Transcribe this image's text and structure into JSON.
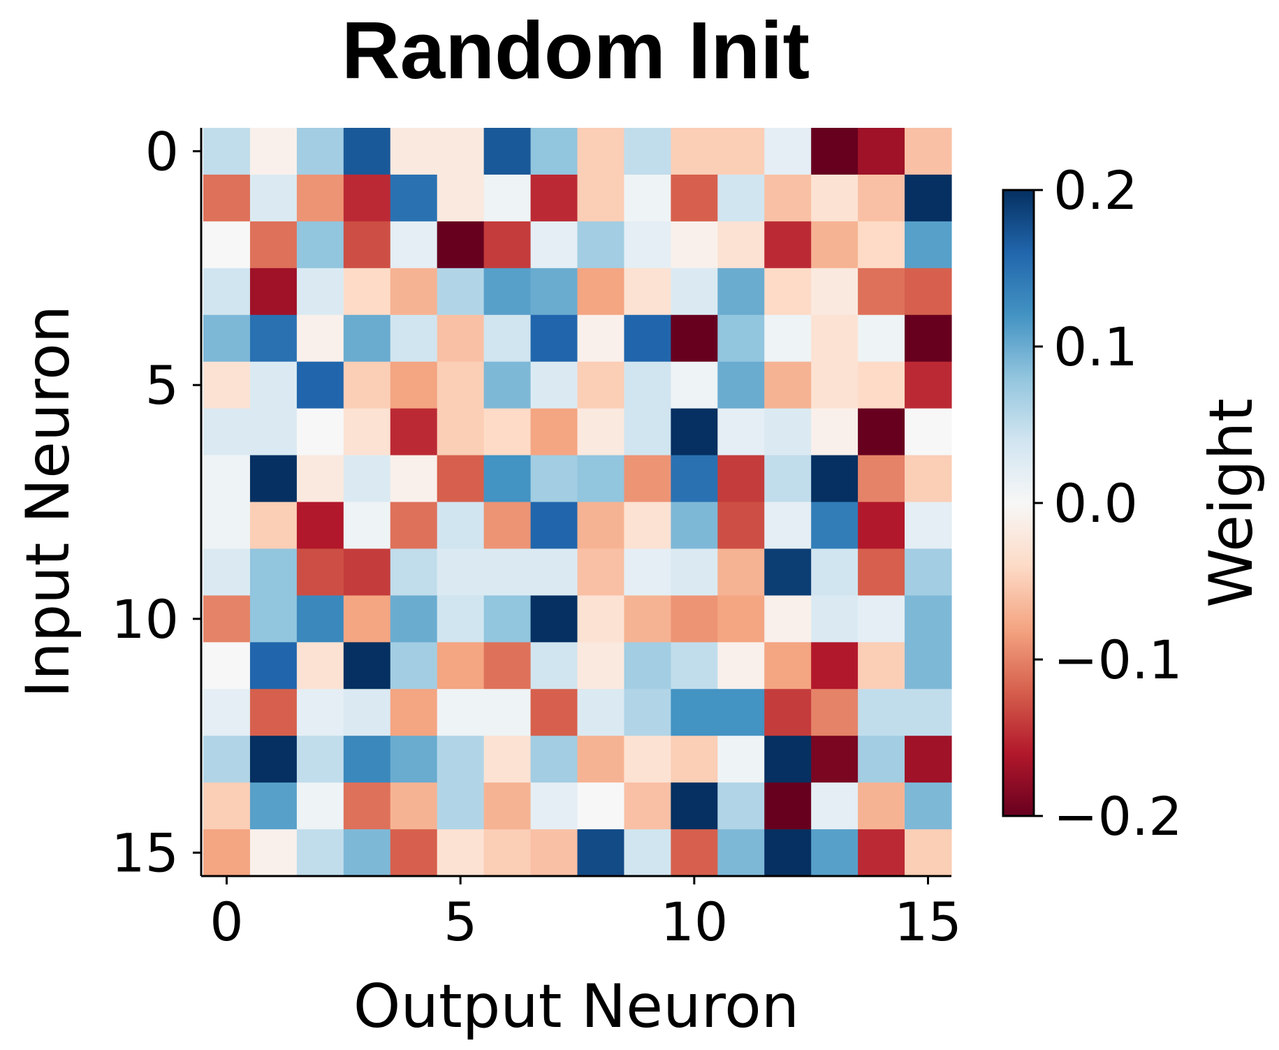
{
  "chart_data": {
    "type": "heatmap",
    "title": "Random Init",
    "xlabel": "Output Neuron",
    "ylabel": "Input Neuron",
    "x_ticks": [
      "0",
      "5",
      "10",
      "15"
    ],
    "y_ticks": [
      "0",
      "5",
      "10",
      "15"
    ],
    "rows": 16,
    "cols": 16,
    "colormap": "RdBu",
    "vmin": -0.2,
    "vmax": 0.2,
    "colorbar": {
      "label": "Weight",
      "ticks": [
        0.2,
        0.1,
        0.0,
        -0.1,
        -0.2
      ],
      "tick_labels": [
        "0.2",
        "0.1",
        "0.0",
        "−0.1",
        "−0.2"
      ]
    },
    "values": [
      [
        0.05,
        -0.01,
        0.07,
        0.17,
        -0.02,
        -0.02,
        0.17,
        0.08,
        -0.05,
        0.05,
        -0.05,
        -0.05,
        0.02,
        -0.2,
        -0.17,
        -0.06
      ],
      [
        -0.11,
        0.03,
        -0.09,
        -0.15,
        0.15,
        -0.02,
        0.01,
        -0.15,
        -0.05,
        0.01,
        -0.12,
        0.04,
        -0.06,
        -0.03,
        -0.06,
        0.2
      ],
      [
        0.0,
        -0.11,
        0.08,
        -0.13,
        0.02,
        -0.2,
        -0.14,
        0.02,
        0.07,
        0.02,
        -0.01,
        -0.03,
        -0.15,
        -0.07,
        -0.04,
        0.11
      ],
      [
        0.04,
        -0.17,
        0.03,
        -0.04,
        -0.07,
        0.06,
        0.11,
        0.1,
        -0.08,
        -0.03,
        0.03,
        0.1,
        -0.04,
        -0.02,
        -0.11,
        -0.12
      ],
      [
        0.09,
        0.15,
        -0.01,
        0.1,
        0.04,
        -0.06,
        0.04,
        0.16,
        -0.01,
        0.16,
        -0.2,
        0.08,
        0.01,
        -0.03,
        0.01,
        -0.2
      ],
      [
        -0.03,
        0.03,
        0.16,
        -0.05,
        -0.08,
        -0.05,
        0.09,
        0.03,
        -0.05,
        0.04,
        0.01,
        0.1,
        -0.07,
        -0.03,
        -0.04,
        -0.15
      ],
      [
        0.03,
        0.03,
        0.0,
        -0.03,
        -0.15,
        -0.05,
        -0.04,
        -0.08,
        -0.02,
        0.04,
        0.2,
        0.02,
        0.03,
        -0.01,
        -0.2,
        0.0
      ],
      [
        0.01,
        0.2,
        -0.02,
        0.03,
        -0.01,
        -0.12,
        0.12,
        0.07,
        0.08,
        -0.09,
        0.15,
        -0.14,
        0.05,
        0.2,
        -0.1,
        -0.05
      ],
      [
        0.01,
        -0.05,
        -0.16,
        0.01,
        -0.11,
        0.04,
        -0.09,
        0.16,
        -0.07,
        -0.03,
        0.09,
        -0.13,
        0.02,
        0.14,
        -0.16,
        0.02
      ],
      [
        0.03,
        0.08,
        -0.13,
        -0.14,
        0.05,
        0.03,
        0.03,
        0.03,
        -0.06,
        0.02,
        0.03,
        -0.07,
        0.19,
        0.04,
        -0.12,
        0.07
      ],
      [
        -0.1,
        0.08,
        0.13,
        -0.08,
        0.1,
        0.04,
        0.08,
        0.2,
        -0.03,
        -0.07,
        -0.09,
        -0.08,
        -0.01,
        0.03,
        0.02,
        0.09
      ],
      [
        0.0,
        0.16,
        -0.03,
        0.2,
        0.07,
        -0.08,
        -0.11,
        0.04,
        -0.02,
        0.07,
        0.05,
        -0.01,
        -0.08,
        -0.16,
        -0.05,
        0.09
      ],
      [
        0.02,
        -0.12,
        0.02,
        0.03,
        -0.08,
        0.01,
        0.01,
        -0.12,
        0.03,
        0.06,
        0.12,
        0.12,
        -0.14,
        -0.1,
        0.05,
        0.05
      ],
      [
        0.06,
        0.2,
        0.05,
        0.13,
        0.1,
        0.06,
        -0.03,
        0.07,
        -0.07,
        -0.03,
        -0.05,
        0.01,
        0.2,
        -0.19,
        0.07,
        -0.17
      ],
      [
        -0.05,
        0.11,
        0.01,
        -0.11,
        -0.07,
        0.06,
        -0.07,
        0.02,
        0.0,
        -0.06,
        0.2,
        0.06,
        -0.2,
        0.02,
        -0.07,
        0.09
      ],
      [
        -0.08,
        -0.01,
        0.05,
        0.09,
        -0.12,
        -0.03,
        -0.05,
        -0.06,
        0.18,
        0.04,
        -0.12,
        0.09,
        0.2,
        0.11,
        -0.15,
        -0.05
      ]
    ]
  }
}
